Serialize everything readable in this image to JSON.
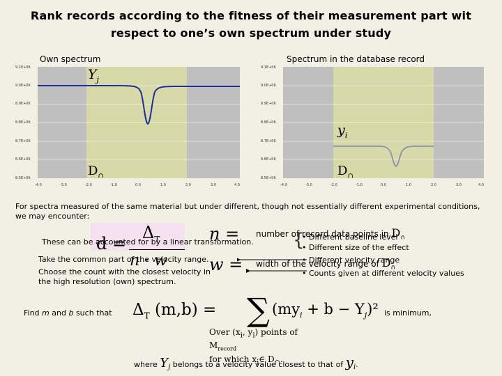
{
  "title_line1": "Rank records according to the fitness of their measurement part wit",
  "title_line2": "respect to one’s own spectrum under study",
  "left_label": "Own spectrum",
  "right_label": "Spectrum in the database record",
  "left_plot": {
    "y_ticks": [
      "9.1E+06",
      "9.0E+06",
      "8.9E+06",
      "8.8E+06",
      "8.7E+06",
      "8.6E+06",
      "8.5E+06"
    ],
    "x_ticks": [
      "-4.0",
      "-3.0",
      "-2.0",
      "-1.0",
      "0.0",
      "1.0",
      "2.0",
      "3.0",
      "4.0"
    ],
    "var_label": "Y",
    "var_sub": "j",
    "region_label": "D",
    "region_sub": "∩"
  },
  "right_plot": {
    "y_ticks": [
      "9.1E+06",
      "9.0E+06",
      "8.9E+06",
      "8.8E+06",
      "8.7E+06",
      "8.6E+06",
      "8.5E+06"
    ],
    "x_ticks": [
      "-4.0",
      "-3.0",
      "-2.0",
      "-1.0",
      "0.0",
      "1.0",
      "2.0",
      "3.0",
      "4.0"
    ],
    "var_label": "y",
    "var_sub": "i",
    "region_label": "D",
    "region_sub": "∩"
  },
  "intro": "For spectra measured of the same material but under different, though not essentially different experimental conditions, we may encounter:",
  "linear_text": "These can be accounted for by a linear transformation.",
  "common_part_text": "Take the common part of the velocity range.",
  "choose_line1": "Choose the count with the closest velocity in",
  "choose_line2": "the high resolution (own) spectrum.",
  "bullets": [
    "Different baseline level",
    "Different size of the effect",
    "Different velocity range",
    "Counts given at different velocity values"
  ],
  "def_n_text": "number of record data points in",
  "def_w_text": "width of the velocity range of",
  "formula_d": "d",
  "formula_delta": "Δ",
  "formula_T": "T",
  "formula_n": "n",
  "formula_w": "w",
  "find_text_prefix": "Find",
  "find_m": "m",
  "find_and": "and",
  "find_b": "b",
  "find_text_suffix": "such that",
  "objective_lhs": "(m,b) =",
  "objective_sum": "(my",
  "objective_plus": "+ b − Y",
  "objective_sq": ")²",
  "sum_caption_1": "Over (x",
  "sum_caption_2": "points of",
  "sum_caption_3": "M",
  "sum_caption_3_sub": "record",
  "sum_caption_4": "for which x",
  "is_minimum": "is minimum,",
  "where_text_1": "where",
  "where_text_2": "belongs to a velocity value closest to that of"
}
